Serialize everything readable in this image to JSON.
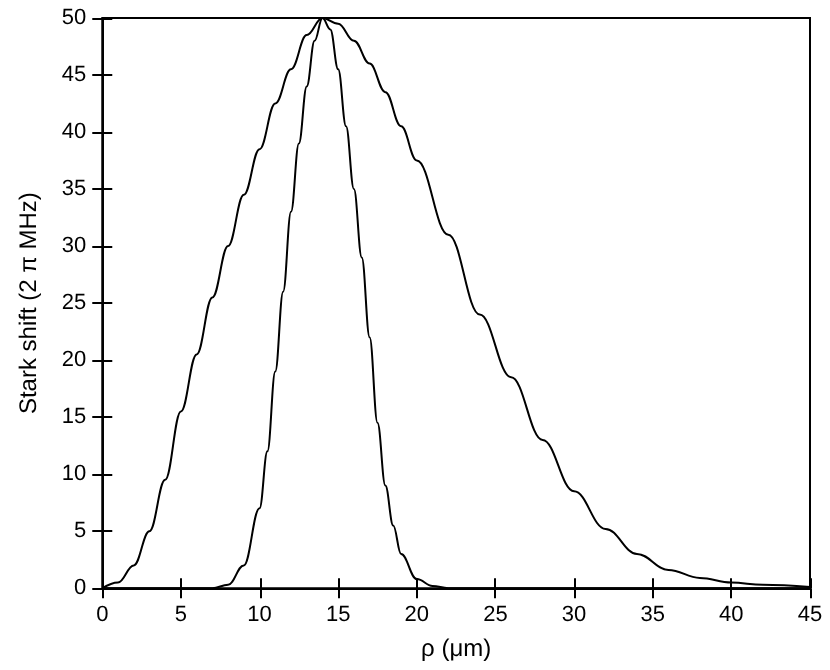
{
  "chart_data": {
    "type": "line",
    "xlabel": "ρ (μm)",
    "ylabel": "Stark shift (2 π MHz)",
    "xlim": [
      0,
      45
    ],
    "xticks": [
      0,
      5,
      10,
      15,
      20,
      25,
      30,
      35,
      40,
      45
    ],
    "ylim": [
      0,
      50
    ],
    "yticks": [
      0,
      5,
      10,
      15,
      20,
      25,
      30,
      35,
      40,
      45,
      50
    ],
    "grid": false,
    "marker": "none",
    "line_style": "solid",
    "series": [
      {
        "color": "#000000",
        "x": [
          0,
          1,
          2,
          3,
          4,
          5,
          6,
          7,
          8,
          9,
          10,
          11,
          12,
          13,
          14,
          15,
          16,
          17,
          18,
          19,
          20,
          22,
          24,
          26,
          28,
          30,
          32,
          34,
          36,
          38,
          40,
          42,
          45
        ],
        "values": [
          0,
          0.5,
          2,
          5,
          9.5,
          15.5,
          20.5,
          25.5,
          30,
          34.5,
          38.5,
          42.5,
          45.5,
          48.5,
          50,
          49.5,
          48,
          46,
          43.5,
          40.5,
          37.5,
          31,
          24,
          18.5,
          13,
          8.5,
          5.2,
          3,
          1.6,
          0.9,
          0.5,
          0.3,
          0.1
        ]
      },
      {
        "color": "#000000",
        "x": [
          0,
          7,
          8,
          9,
          10,
          10.5,
          11,
          11.5,
          12,
          12.5,
          13,
          13.5,
          14,
          14.5,
          15,
          15.5,
          16,
          16.5,
          17,
          17.5,
          18,
          18.5,
          19,
          20,
          21,
          22,
          45
        ],
        "values": [
          0,
          0,
          0.3,
          2,
          7,
          12,
          19,
          26,
          33,
          39,
          44,
          48,
          50,
          49,
          45.5,
          40.5,
          35,
          29,
          22,
          14.5,
          9,
          5.5,
          3,
          0.8,
          0.2,
          0,
          0
        ]
      }
    ]
  }
}
